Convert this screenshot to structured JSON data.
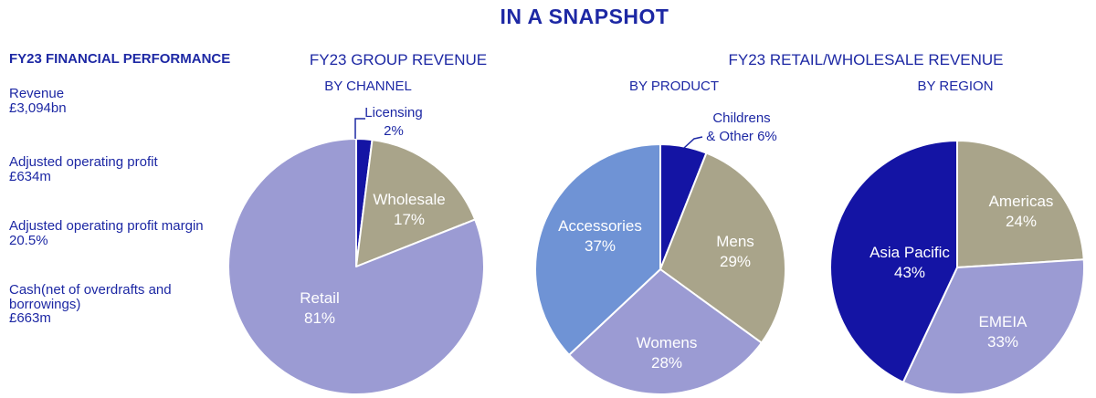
{
  "title": "IN A SNAPSHOT",
  "colors": {
    "text": "#1D28A4",
    "navy": "#1414A4",
    "periwinkle": "#9B9BD3",
    "khaki": "#A9A48A",
    "cornflower": "#6F93D5",
    "slice_border": "#FFFFFF",
    "slice_label": "#FFFFFF"
  },
  "financial_performance": {
    "heading": "FY23 FINANCIAL PERFORMANCE",
    "items": [
      {
        "label": "Revenue",
        "value": "£3,094bn"
      },
      {
        "label": "Adjusted operating profit",
        "value": "£634m"
      },
      {
        "label": "Adjusted operating profit margin",
        "value": "20.5%"
      },
      {
        "label": "Cash(net of overdrafts and borrowings)",
        "value": "£663m"
      }
    ]
  },
  "headers": {
    "group_revenue": "FY23 GROUP REVENUE",
    "by_channel": "BY CHANNEL",
    "retail_wholesale": "FY23 RETAIL/WHOLESALE REVENUE",
    "by_product": "BY PRODUCT",
    "by_region": "BY REGION"
  },
  "chart_data": [
    {
      "type": "pie",
      "id": "by_channel",
      "title": "FY23 GROUP REVENUE",
      "subtitle": "BY CHANNEL",
      "unit": "%",
      "start_angle_deg": 0,
      "direction": "clockwise",
      "categories": [
        "Licensing",
        "Wholesale",
        "Retail"
      ],
      "values": [
        2,
        17,
        81
      ],
      "slices": [
        {
          "label": "Licensing",
          "value": 2,
          "color_key": "navy",
          "label_lines": [
            "Licensing",
            "2%"
          ],
          "label_placement": "outside"
        },
        {
          "label": "Wholesale",
          "value": 17,
          "color_key": "khaki",
          "label_lines": [
            "Wholesale",
            "17%"
          ],
          "label_placement": "inside"
        },
        {
          "label": "Retail",
          "value": 81,
          "color_key": "periwinkle",
          "label_lines": [
            "Retail",
            "81%"
          ],
          "label_placement": "inside"
        }
      ]
    },
    {
      "type": "pie",
      "id": "by_product",
      "title": "FY23 RETAIL/WHOLESALE REVENUE",
      "subtitle": "BY PRODUCT",
      "unit": "%",
      "start_angle_deg": 0,
      "direction": "clockwise",
      "categories": [
        "Childrens & Other",
        "Mens",
        "Womens",
        "Accessories"
      ],
      "values": [
        6,
        29,
        28,
        37
      ],
      "slices": [
        {
          "label": "Childrens & Other",
          "value": 6,
          "color_key": "navy",
          "label_lines": [
            "Childrens",
            "& Other 6%"
          ],
          "label_placement": "outside"
        },
        {
          "label": "Mens",
          "value": 29,
          "color_key": "khaki",
          "label_lines": [
            "Mens",
            "29%"
          ],
          "label_placement": "inside"
        },
        {
          "label": "Womens",
          "value": 28,
          "color_key": "periwinkle",
          "label_lines": [
            "Womens",
            "28%"
          ],
          "label_placement": "inside"
        },
        {
          "label": "Accessories",
          "value": 37,
          "color_key": "cornflower",
          "label_lines": [
            "Accessories",
            "37%"
          ],
          "label_placement": "inside"
        }
      ]
    },
    {
      "type": "pie",
      "id": "by_region",
      "title": "FY23 RETAIL/WHOLESALE REVENUE",
      "subtitle": "BY REGION",
      "unit": "%",
      "start_angle_deg": 0,
      "direction": "clockwise",
      "categories": [
        "Americas",
        "EMEIA",
        "Asia Pacific"
      ],
      "values": [
        24,
        33,
        43
      ],
      "slices": [
        {
          "label": "Americas",
          "value": 24,
          "color_key": "khaki",
          "label_lines": [
            "Americas",
            "24%"
          ],
          "label_placement": "inside"
        },
        {
          "label": "EMEIA",
          "value": 33,
          "color_key": "periwinkle",
          "label_lines": [
            "EMEIA",
            "33%"
          ],
          "label_placement": "inside"
        },
        {
          "label": "Asia Pacific",
          "value": 43,
          "color_key": "navy",
          "label_lines": [
            "Asia Pacific",
            "43%"
          ],
          "label_placement": "inside"
        }
      ]
    }
  ]
}
